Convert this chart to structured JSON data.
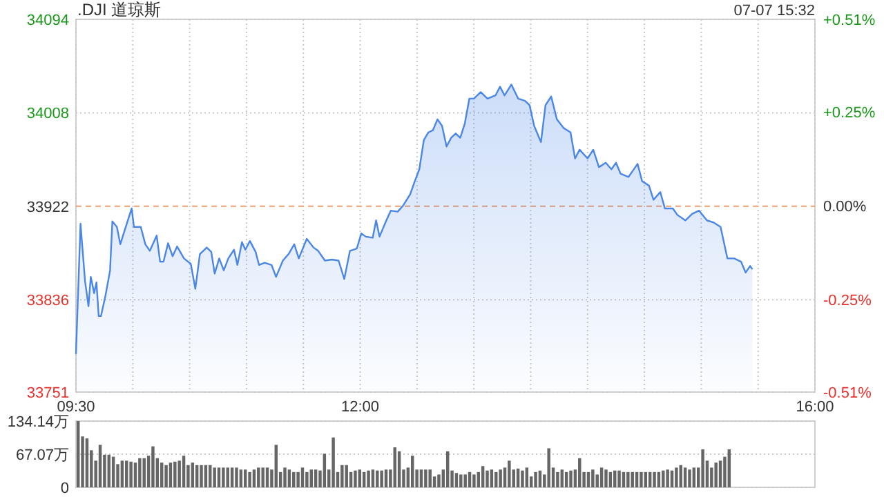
{
  "chart_data": [
    {
      "type": "area",
      "title": ".DJI 道琼斯",
      "annotations": [
        "07-07 15:32"
      ],
      "color": "#4a86e8",
      "grid": true,
      "x": [
        9.5,
        9.54,
        9.58,
        9.61,
        9.63,
        9.66,
        9.68,
        9.7,
        9.72,
        9.76,
        9.8,
        9.82,
        9.86,
        9.89,
        9.95,
        9.99,
        10.01,
        10.07,
        10.11,
        10.15,
        10.21,
        10.24,
        10.27,
        10.31,
        10.35,
        10.39,
        10.45,
        10.51,
        10.55,
        10.59,
        10.65,
        10.69,
        10.72,
        10.76,
        10.8,
        10.84,
        10.89,
        10.92,
        10.96,
        10.99,
        11.03,
        11.08,
        11.11,
        11.16,
        11.22,
        11.26,
        11.32,
        11.37,
        11.42,
        11.46,
        11.53,
        11.59,
        11.63,
        11.69,
        11.75,
        11.81,
        11.86,
        11.91,
        11.97,
        12.01,
        12.05,
        12.11,
        12.14,
        12.17,
        12.23,
        12.27,
        12.33,
        12.38,
        12.44,
        12.48,
        12.52,
        12.56,
        12.6,
        12.64,
        12.68,
        12.72,
        12.76,
        12.8,
        12.84,
        12.88,
        12.92,
        12.96,
        13.0,
        13.06,
        13.12,
        13.19,
        13.23,
        13.27,
        13.33,
        13.39,
        13.45,
        13.49,
        13.53,
        13.59,
        13.63,
        13.68,
        13.73,
        13.79,
        13.85,
        13.89,
        13.93,
        14.0,
        14.05,
        14.1,
        14.16,
        14.21,
        14.25,
        14.29,
        14.36,
        14.4,
        14.44,
        14.48,
        14.54,
        14.58,
        14.64,
        14.68,
        14.75,
        14.79,
        14.86,
        14.92,
        14.98,
        15.05,
        15.11,
        15.17,
        15.23,
        15.29,
        15.35,
        15.39,
        15.43,
        15.45
      ],
      "values": [
        33786,
        33906,
        33853,
        33830,
        33857,
        33842,
        33852,
        33821,
        33821,
        33840,
        33863,
        33908,
        33903,
        33887,
        33907,
        33920,
        33903,
        33903,
        33887,
        33881,
        33895,
        33871,
        33871,
        33888,
        33876,
        33885,
        33874,
        33869,
        33846,
        33878,
        33884,
        33880,
        33860,
        33874,
        33863,
        33874,
        33882,
        33868,
        33889,
        33882,
        33890,
        33880,
        33868,
        33870,
        33868,
        33857,
        33872,
        33878,
        33887,
        33874,
        33892,
        33884,
        33881,
        33872,
        33873,
        33872,
        33855,
        33881,
        33883,
        33897,
        33894,
        33893,
        33909,
        33894,
        33909,
        33918,
        33917,
        33923,
        33933,
        33945,
        33956,
        33983,
        33990,
        33992,
        34002,
        33996,
        33977,
        33985,
        33989,
        33985,
        33998,
        34021,
        34021,
        34027,
        34021,
        34024,
        34032,
        34024,
        34034,
        34021,
        34019,
        34015,
        33996,
        33981,
        34015,
        34023,
        34002,
        33994,
        33990,
        33966,
        33974,
        33966,
        33974,
        33958,
        33962,
        33956,
        33962,
        33952,
        33949,
        33955,
        33961,
        33945,
        33941,
        33928,
        33935,
        33920,
        33920,
        33914,
        33909,
        33915,
        33918,
        33909,
        33907,
        33903,
        33874,
        33874,
        33871,
        33861,
        33867,
        33864
      ],
      "xlim": [
        9.5,
        16
      ],
      "xticks": [
        {
          "value": 9.5,
          "label": "09:30"
        },
        {
          "value": 10,
          "label": null
        },
        {
          "value": 10.5,
          "label": null
        },
        {
          "value": 11,
          "label": null
        },
        {
          "value": 11.5,
          "label": null
        },
        {
          "value": 12,
          "label": "12:00"
        },
        {
          "value": 12.5,
          "label": null
        },
        {
          "value": 13,
          "label": null
        },
        {
          "value": 13.5,
          "label": null
        },
        {
          "value": 14,
          "label": null
        },
        {
          "value": 14.5,
          "label": null
        },
        {
          "value": 15,
          "label": null
        },
        {
          "value": 15.5,
          "label": null
        },
        {
          "value": 16,
          "label": "16:00"
        }
      ],
      "ylim": [
        33751,
        34094
      ],
      "yticks": [
        33751,
        33836,
        33922,
        34008,
        34094
      ],
      "y2lim": [
        -0.506,
        0.506
      ],
      "y2ticks": [
        {
          "value": -0.506,
          "label": "-0.51%"
        },
        {
          "value": -0.254,
          "label": "-0.25%"
        },
        {
          "value": 0,
          "label": "0.00%"
        },
        {
          "value": 0.254,
          "label": "+0.25%"
        },
        {
          "value": 0.506,
          "label": "+0.51%"
        }
      ],
      "ref_lines": [
        {
          "axis": "y",
          "value": 33922,
          "color": "#f0a070",
          "line_style": "dashed"
        }
      ]
    },
    {
      "type": "bar",
      "color": "#666666",
      "grid": "y",
      "tick_labels": "y",
      "categories": [
        null,
        null,
        null,
        null,
        null,
        null,
        null,
        null,
        null,
        null,
        null,
        null,
        null,
        null,
        null,
        null,
        null,
        null,
        null,
        null,
        null,
        null,
        null,
        null,
        null,
        null,
        null,
        null,
        null,
        null,
        null,
        null,
        null,
        null,
        null,
        null,
        null,
        null,
        null,
        null,
        null,
        null,
        null,
        null,
        null,
        null,
        null,
        null,
        null,
        null,
        null,
        null,
        null,
        null,
        null,
        null,
        null,
        null,
        null,
        null,
        null,
        null,
        null,
        null,
        null,
        null,
        null,
        null,
        null,
        null,
        null,
        null,
        null,
        null,
        null,
        null,
        null,
        null,
        null,
        null,
        null,
        null,
        null,
        null,
        null,
        null,
        null,
        null,
        null,
        null,
        null,
        null,
        null,
        null,
        null,
        null,
        null,
        null,
        null,
        null,
        null,
        null,
        null,
        null,
        null,
        null,
        null,
        null,
        null,
        null,
        null,
        null,
        null,
        null,
        null,
        null,
        null,
        null,
        null,
        null,
        null,
        null,
        null,
        null,
        null,
        null,
        null,
        null,
        null,
        null,
        null,
        null,
        null,
        null,
        null,
        null,
        null,
        null,
        null,
        null,
        null,
        null,
        null,
        null,
        null,
        null,
        null,
        null,
        null,
        null,
        null,
        null,
        null,
        null,
        null,
        null,
        null,
        null,
        null,
        null,
        null,
        null,
        null,
        null,
        null,
        null,
        null,
        null
      ],
      "values": [
        134,
        103,
        99,
        75,
        54,
        86,
        66,
        66,
        62,
        47,
        54,
        54,
        52,
        50,
        59,
        59,
        64,
        83,
        59,
        50,
        45,
        50,
        52,
        54,
        64,
        45,
        50,
        45,
        45,
        45,
        45,
        40,
        40,
        40,
        40,
        40,
        40,
        36,
        36,
        31,
        36,
        40,
        40,
        40,
        36,
        86,
        31,
        40,
        36,
        31,
        31,
        40,
        31,
        36,
        36,
        34,
        68,
        36,
        101,
        31,
        45,
        45,
        31,
        34,
        36,
        31,
        34,
        36,
        34,
        34,
        36,
        36,
        81,
        73,
        36,
        40,
        64,
        36,
        36,
        36,
        36,
        22,
        26,
        36,
        73,
        34,
        29,
        26,
        26,
        31,
        26,
        31,
        43,
        34,
        36,
        31,
        36,
        40,
        54,
        36,
        38,
        34,
        40,
        22,
        31,
        34,
        26,
        79,
        40,
        31,
        36,
        31,
        34,
        36,
        59,
        31,
        31,
        36,
        26,
        40,
        36,
        31,
        34,
        34,
        31,
        31,
        31,
        31,
        31,
        31,
        31,
        31,
        31,
        34,
        36,
        34,
        40,
        45,
        40,
        36,
        40,
        40,
        77,
        54,
        40,
        50,
        54,
        62,
        77,
        null,
        null,
        null,
        null,
        null,
        null,
        null,
        null,
        null,
        null,
        null,
        null,
        null,
        null,
        null,
        null,
        null,
        null,
        null
      ],
      "ylim": [
        0,
        134.14
      ],
      "yticks": [
        0,
        {
          "value": 67.07,
          "label": "67.07万"
        },
        {
          "value": 134.14,
          "label": "134.14万"
        }
      ]
    }
  ]
}
